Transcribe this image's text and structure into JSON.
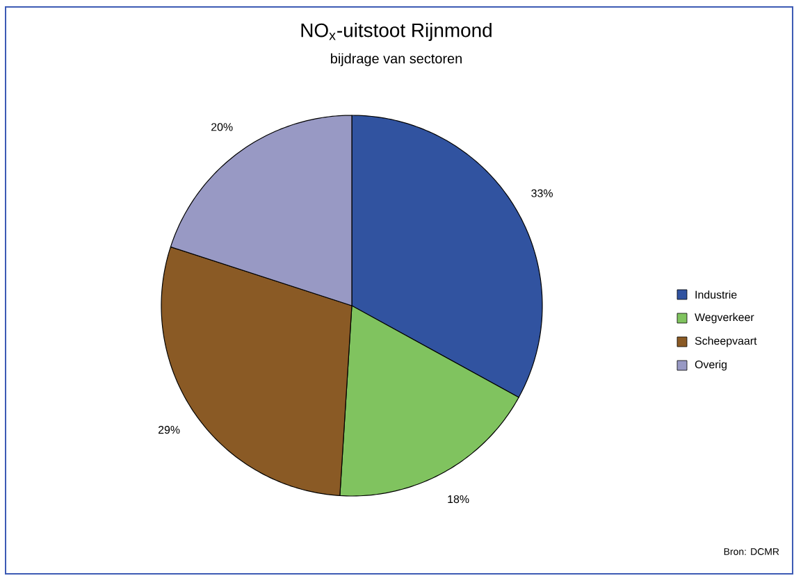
{
  "chart_data": {
    "type": "pie",
    "title": "NO$_{x}$-uitstoot Rijnmond",
    "subtitle": "bijdrage van sectoren",
    "categories": [
      "Industrie",
      "Wegverkeer",
      "Scheepvaart",
      "Overig"
    ],
    "values": [
      33,
      18,
      29,
      20
    ],
    "value_labels": [
      "33%",
      "18%",
      "29%",
      "20%"
    ],
    "colors": [
      "#3153a0",
      "#80c35f",
      "#8a5a25",
      "#9899c4"
    ],
    "legend": "right",
    "annotations": [
      "Bron: DCMR"
    ]
  }
}
